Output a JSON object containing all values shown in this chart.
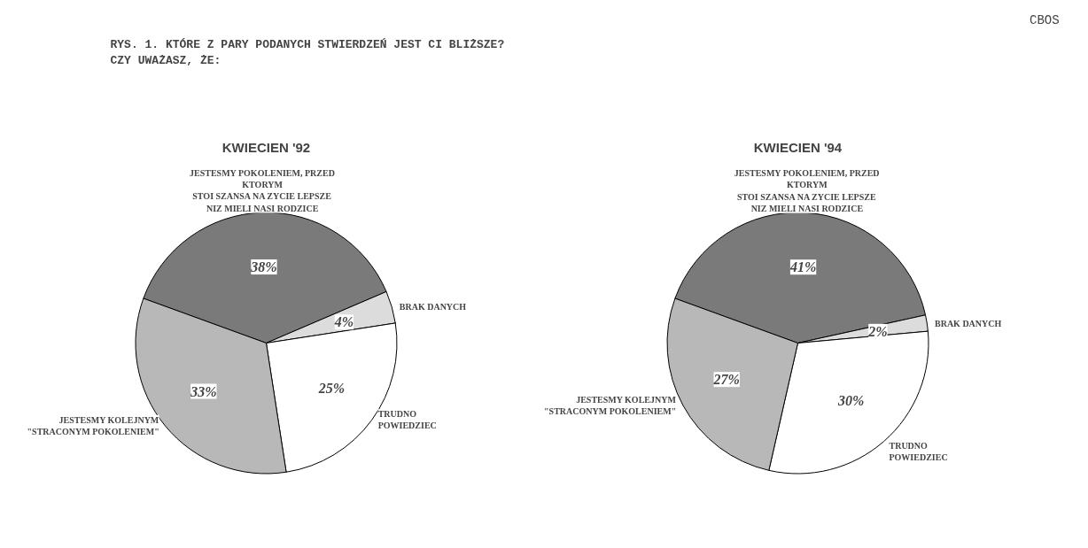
{
  "chart_data": [
    {
      "type": "pie",
      "title": "KWIECIEN '92",
      "annotations": [
        "RYS. 1. KTÓRE Z PARY PODANYCH STWIERDZEŃ JEST CI BLIŻSZE?\n         CZY UWAŻASZ, ŻE:",
        "CBOS"
      ],
      "categories": [
        "JESTESMY POKOLENIEM, PRZED\nKTORYM\nSTOI SZANSA NA ZYCIE LEPSZE\nNIZ MIELI NASI RODZICE",
        "BRAK DANYCH",
        "TRUDNO\nPOWIEDZIEC",
        "JESTESMY KOLEJNYM\n\"STRACONYM POKOLENIEM\""
      ],
      "values": [
        38,
        4,
        25,
        33
      ],
      "value_labels": [
        "38%",
        "4%",
        "25%",
        "33%"
      ],
      "colors": [
        "#7a7a7a",
        "#dcdcdc",
        "#ffffff",
        "#b8b8b8"
      ]
    },
    {
      "type": "pie",
      "title": "KWIECIEN '94",
      "categories": [
        "JESTESMY POKOLENIEM, PRZED\nKTORYM\nSTOI SZANSA NA ZYCIE LEPSZE\nNIZ MIELI NASI RODZICE",
        "BRAK DANYCH",
        "TRUDNO\nPOWIEDZIEC",
        "JESTESMY KOLEJNYM\n\"STRACONYM POKOLENIEM\""
      ],
      "values": [
        41,
        2,
        30,
        27
      ],
      "value_labels": [
        "41%",
        "2%",
        "30%",
        "27%"
      ],
      "colors": [
        "#7a7a7a",
        "#dcdcdc",
        "#ffffff",
        "#b8b8b8"
      ]
    }
  ]
}
